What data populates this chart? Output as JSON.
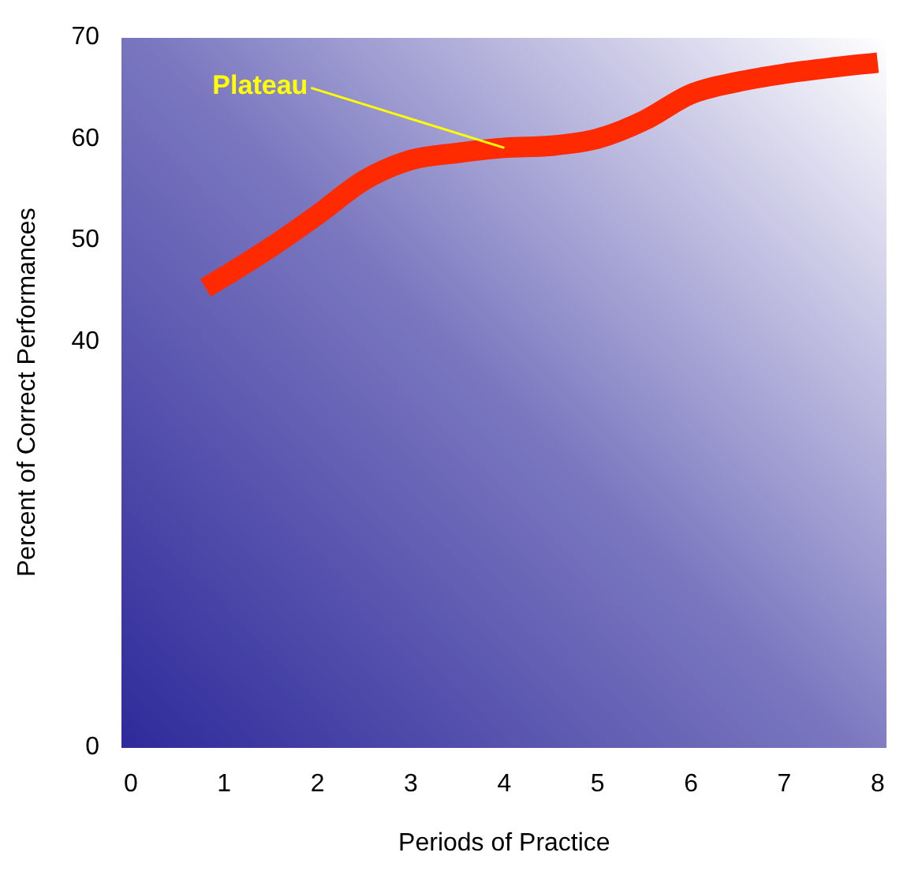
{
  "chart_data": {
    "type": "line",
    "xlabel": "Periods of Practice",
    "ylabel": "Percent of Correct Performances",
    "series": [
      {
        "color": "#ff2a00",
        "x": [
          0.8,
          1,
          1.5,
          2,
          2.5,
          3,
          3.5,
          4,
          4.5,
          5,
          5.5,
          6,
          6.5,
          7,
          7.5,
          8
        ],
        "values": [
          45.3,
          46.4,
          49.3,
          52.5,
          55.9,
          57.9,
          58.6,
          59.1,
          59.3,
          60,
          61.8,
          64.4,
          65.6,
          66.4,
          67,
          67.5
        ]
      }
    ],
    "xlim": [
      -0.1,
      8.1
    ],
    "xticks": [
      0,
      1,
      2,
      3,
      4,
      5,
      6,
      7,
      8
    ],
    "ylim": [
      0,
      70
    ],
    "yticks": [
      0,
      40,
      50,
      60,
      70
    ],
    "annotations": [
      {
        "text": "Plateau",
        "x": 4,
        "y": 59.1
      }
    ],
    "grid": false,
    "legend": false,
    "marker": "none",
    "line_style": "solid"
  }
}
